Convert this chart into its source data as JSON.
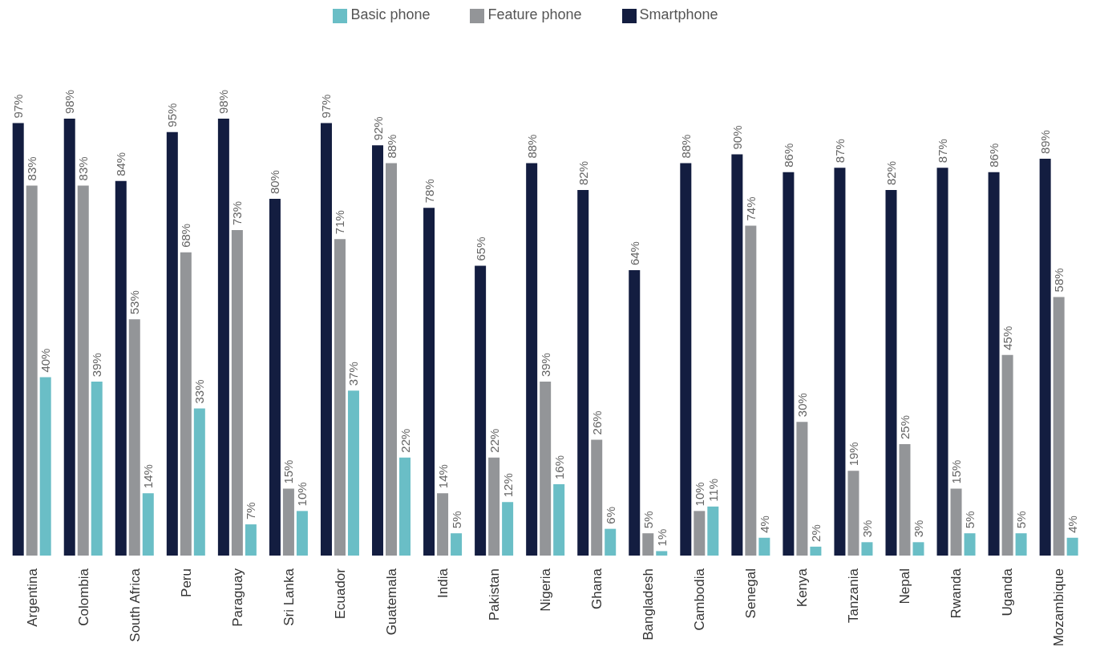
{
  "chart_data": {
    "type": "bar",
    "categories": [
      "Argentina",
      "Colombia",
      "South Africa",
      "Peru",
      "Paraguay",
      "Sri Lanka",
      "Ecuador",
      "Guatemala",
      "India",
      "Pakistan",
      "Nigeria",
      "Ghana",
      "Bangladesh",
      "Cambodia",
      "Senegal",
      "Kenya",
      "Tanzania",
      "Nepal",
      "Rwanda",
      "Uganda",
      "Mozambique"
    ],
    "series": [
      {
        "name": "Smartphone",
        "color": "#131d40",
        "values": [
          97,
          98,
          84,
          95,
          98,
          80,
          97,
          92,
          78,
          65,
          88,
          82,
          64,
          88,
          90,
          86,
          87,
          82,
          87,
          86,
          89
        ],
        "value_labels": [
          "97%",
          "98%",
          "84%",
          "95%",
          "98%",
          "80%",
          "97%",
          "92%",
          "78%",
          "65%",
          "88%",
          "82%",
          "64%",
          "88%",
          "90%",
          "86%",
          "87%",
          "82%",
          "87%",
          "86%",
          "89%"
        ]
      },
      {
        "name": "Feature phone",
        "color": "#939598",
        "values": [
          83,
          83,
          53,
          68,
          73,
          15,
          71,
          88,
          14,
          22,
          39,
          26,
          5,
          10,
          74,
          30,
          19,
          25,
          15,
          45,
          58
        ],
        "value_labels": [
          "83%",
          "83%",
          "53%",
          "68%",
          "73%",
          "15%",
          "71%",
          "88%",
          "14%",
          "22%",
          "39%",
          "26%",
          "5%",
          "10%",
          "74%",
          "30%",
          "19%",
          "25%",
          "15%",
          "45%",
          "58%"
        ]
      },
      {
        "name": "Basic phone",
        "color": "#6abec6",
        "values": [
          40,
          39,
          14,
          33,
          7,
          10,
          37,
          22,
          5,
          12,
          16,
          6,
          1,
          11,
          4,
          2,
          3,
          3,
          5,
          5,
          4
        ],
        "value_labels": [
          "40%",
          "39%",
          "14%",
          "33%",
          "7%",
          "10%",
          "37%",
          "22%",
          "5%",
          "12%",
          "16%",
          "6%",
          "1%",
          "11%",
          "4%",
          "2%",
          "3%",
          "3%",
          "5%",
          "5%",
          "4%"
        ]
      }
    ],
    "legend": "top",
    "grid": false
  }
}
